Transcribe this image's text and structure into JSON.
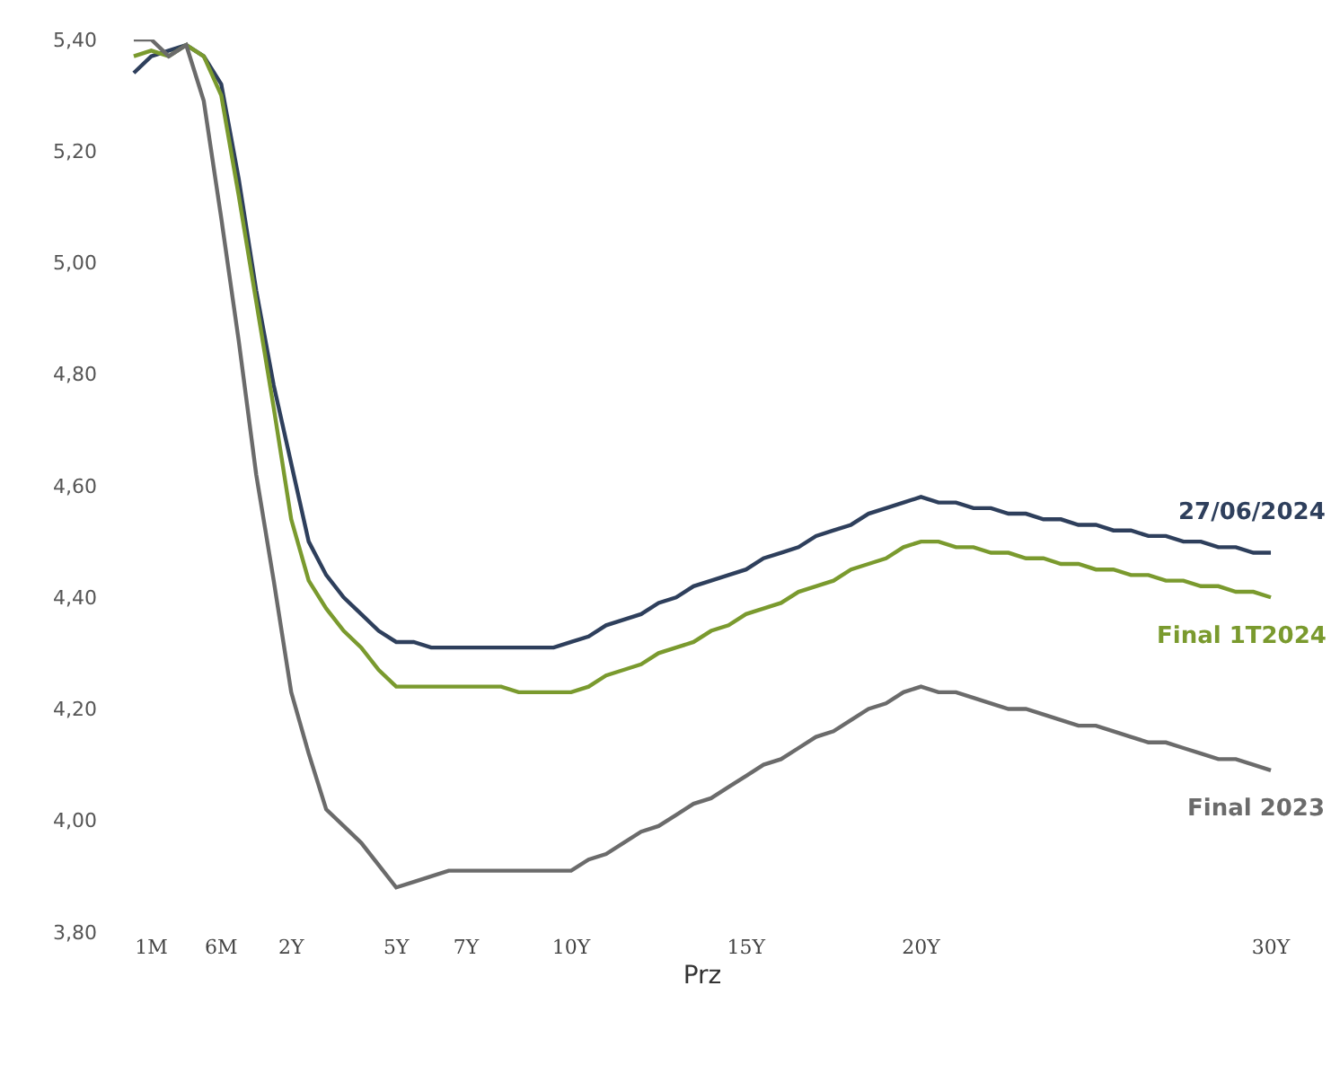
{
  "chart_data": {
    "type": "line",
    "xlabel": "Prz",
    "categories": [
      null,
      "1M",
      null,
      null,
      null,
      "6M",
      null,
      null,
      null,
      "2Y",
      null,
      null,
      null,
      null,
      null,
      "5Y",
      null,
      null,
      null,
      "7Y",
      null,
      null,
      null,
      null,
      null,
      "10Y",
      null,
      null,
      null,
      null,
      null,
      null,
      null,
      null,
      null,
      "15Y",
      null,
      null,
      null,
      null,
      null,
      null,
      null,
      null,
      null,
      "20Y",
      null,
      null,
      null,
      null,
      null,
      null,
      null,
      null,
      null,
      null,
      null,
      null,
      null,
      null,
      null,
      null,
      null,
      null,
      null,
      "30Y"
    ],
    "series": [
      {
        "name": "27/06/2024",
        "color": "#2e3f5c",
        "values": [
          5.34,
          5.37,
          5.38,
          5.39,
          5.37,
          5.32,
          5.15,
          4.95,
          4.78,
          4.64,
          4.5,
          4.44,
          4.4,
          4.37,
          4.34,
          4.32,
          4.32,
          4.31,
          4.31,
          4.31,
          4.31,
          4.31,
          4.31,
          4.31,
          4.31,
          4.32,
          4.33,
          4.35,
          4.36,
          4.37,
          4.39,
          4.4,
          4.42,
          4.43,
          4.44,
          4.45,
          4.47,
          4.48,
          4.49,
          4.51,
          4.52,
          4.53,
          4.55,
          4.56,
          4.57,
          4.58,
          4.57,
          4.57,
          4.56,
          4.56,
          4.55,
          4.55,
          4.54,
          4.54,
          4.53,
          4.53,
          4.52,
          4.52,
          4.51,
          4.51,
          4.5,
          4.5,
          4.49,
          4.49,
          4.48,
          4.48
        ]
      },
      {
        "name": "Final 1T2024",
        "color": "#7a9a2e",
        "values": [
          5.37,
          5.38,
          5.37,
          5.39,
          5.37,
          5.3,
          5.12,
          4.93,
          4.74,
          4.54,
          4.43,
          4.38,
          4.34,
          4.31,
          4.27,
          4.24,
          4.24,
          4.24,
          4.24,
          4.24,
          4.24,
          4.24,
          4.23,
          4.23,
          4.23,
          4.23,
          4.24,
          4.26,
          4.27,
          4.28,
          4.3,
          4.31,
          4.32,
          4.34,
          4.35,
          4.37,
          4.38,
          4.39,
          4.41,
          4.42,
          4.43,
          4.45,
          4.46,
          4.47,
          4.49,
          4.5,
          4.5,
          4.49,
          4.49,
          4.48,
          4.48,
          4.47,
          4.47,
          4.46,
          4.46,
          4.45,
          4.45,
          4.44,
          4.44,
          4.43,
          4.43,
          4.42,
          4.42,
          4.41,
          4.41,
          4.4
        ]
      },
      {
        "name": "Final 2023",
        "color": "#6b6b6b",
        "values": [
          5.4,
          5.4,
          5.37,
          5.39,
          5.29,
          5.08,
          4.86,
          4.62,
          4.43,
          4.23,
          4.12,
          4.02,
          3.99,
          3.96,
          3.92,
          3.88,
          3.89,
          3.9,
          3.91,
          3.91,
          3.91,
          3.91,
          3.91,
          3.91,
          3.91,
          3.91,
          3.93,
          3.94,
          3.96,
          3.98,
          3.99,
          4.01,
          4.03,
          4.04,
          4.06,
          4.08,
          4.1,
          4.11,
          4.13,
          4.15,
          4.16,
          4.18,
          4.2,
          4.21,
          4.23,
          4.24,
          4.23,
          4.23,
          4.22,
          4.21,
          4.2,
          4.2,
          4.19,
          4.18,
          4.17,
          4.17,
          4.16,
          4.15,
          4.14,
          4.14,
          4.13,
          4.12,
          4.11,
          4.11,
          4.1,
          4.09
        ]
      }
    ],
    "ylim": [
      3.8,
      5.4
    ],
    "yticks": [
      {
        "value": 3.8,
        "label": "3,80"
      },
      {
        "value": 4.0,
        "label": "4,00"
      },
      {
        "value": 4.2,
        "label": "4,20"
      },
      {
        "value": 4.4,
        "label": "4,40"
      },
      {
        "value": 4.6,
        "label": "4,60"
      },
      {
        "value": 4.8,
        "label": "4,80"
      },
      {
        "value": 5.0,
        "label": "5,00"
      },
      {
        "value": 5.2,
        "label": "5,20"
      },
      {
        "value": 5.4,
        "label": "5,40"
      }
    ],
    "grid": false,
    "legend": false,
    "marker": "none",
    "line_style": "solid"
  }
}
